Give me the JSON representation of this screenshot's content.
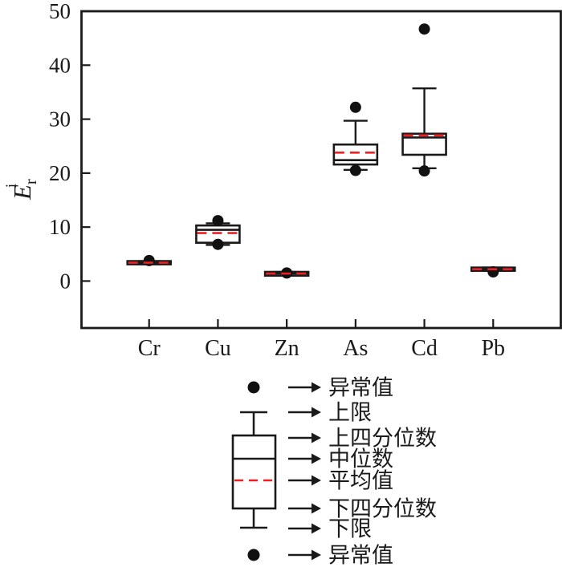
{
  "figure": {
    "background": "#ffffff",
    "axis_color": "#1a1a1a",
    "box_fill": "#ffffff",
    "mean_line_color": "#ed2024",
    "outlier_color": "#111111"
  },
  "chart_data": {
    "type": "box",
    "title": "",
    "ylabel": {
      "base": "E",
      "sub": "r",
      "sup": "i"
    },
    "ylim": [
      -8.7,
      50
    ],
    "yticks": [
      0,
      10,
      20,
      30,
      40,
      50
    ],
    "grid": false,
    "legend_position": "bottom",
    "categories": [
      "Cr",
      "Cu",
      "Zn",
      "As",
      "Cd",
      "Pb"
    ],
    "series": [
      {
        "name": "Cr",
        "q1": 3.1,
        "median": 3.4,
        "mean": 3.4,
        "q3": 3.7,
        "whisker_low": 3.1,
        "whisker_high": 3.7,
        "outliers": [
          3.8
        ]
      },
      {
        "name": "Cu",
        "q1": 7.1,
        "median": 9.5,
        "mean": 8.9,
        "q3": 10.3,
        "whisker_low": 6.7,
        "whisker_high": 10.7,
        "outliers": [
          11.2,
          6.8
        ]
      },
      {
        "name": "Zn",
        "q1": 1.0,
        "median": 1.4,
        "mean": 1.4,
        "q3": 1.7,
        "whisker_low": 1.0,
        "whisker_high": 1.7,
        "outliers": [
          1.5
        ]
      },
      {
        "name": "As",
        "q1": 21.6,
        "median": 22.4,
        "mean": 23.8,
        "q3": 25.3,
        "whisker_low": 20.6,
        "whisker_high": 29.7,
        "outliers": [
          32.2,
          20.5
        ]
      },
      {
        "name": "Cd",
        "q1": 23.4,
        "median": 26.6,
        "mean": 27.0,
        "q3": 27.3,
        "whisker_low": 20.9,
        "whisker_high": 35.7,
        "outliers": [
          46.7,
          20.4
        ]
      },
      {
        "name": "Pb",
        "q1": 1.9,
        "median": 2.2,
        "mean": 2.2,
        "q3": 2.5,
        "whisker_low": 1.9,
        "whisker_high": 2.5,
        "outliers": [
          1.7
        ]
      }
    ]
  },
  "legend": {
    "items": [
      {
        "marker": "outlier-dot",
        "label": "异常值"
      },
      {
        "marker": "upper-whisker-cap",
        "label": "上限"
      },
      {
        "marker": "upper-quartile",
        "label": "上四分位数"
      },
      {
        "marker": "median-line",
        "label": "中位数"
      },
      {
        "marker": "mean-dashed-line",
        "label": "平均值"
      },
      {
        "marker": "lower-quartile",
        "label": "下四分位数"
      },
      {
        "marker": "lower-whisker-cap",
        "label": "下限"
      },
      {
        "marker": "outlier-dot",
        "label": "异常值"
      }
    ]
  }
}
